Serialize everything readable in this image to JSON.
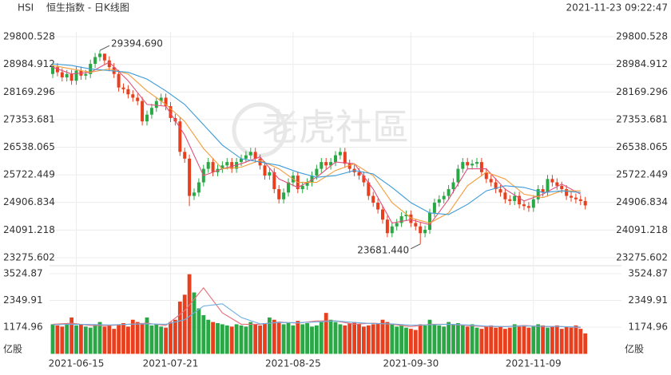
{
  "header": {
    "symbol": "HSI",
    "title": "恒生指数 - 日K线图",
    "timestamp": "2021-11-23 09:22:47"
  },
  "watermark": "老虎社區",
  "chart_data": {
    "type": "candlestick",
    "categories": [
      null,
      null,
      null,
      null,
      null,
      "2021-06-15",
      null,
      null,
      null,
      null,
      null,
      null,
      null,
      null,
      null,
      null,
      null,
      null,
      null,
      null,
      null,
      null,
      null,
      null,
      null,
      "2021-07-21",
      null,
      null,
      null,
      null,
      null,
      null,
      null,
      null,
      null,
      null,
      null,
      null,
      null,
      null,
      null,
      null,
      null,
      null,
      null,
      null,
      null,
      null,
      null,
      null,
      null,
      "2021-08-25",
      null,
      null,
      null,
      null,
      null,
      null,
      null,
      null,
      null,
      null,
      null,
      null,
      null,
      null,
      null,
      null,
      null,
      null,
      null,
      null,
      null,
      null,
      null,
      null,
      "2021-09-30",
      null,
      null,
      null,
      null,
      null,
      null,
      null,
      null,
      null,
      null,
      null,
      null,
      null,
      null,
      null,
      null,
      null,
      null,
      null,
      null,
      null,
      null,
      null,
      null,
      null,
      "2021-11-09",
      null,
      null,
      null,
      null,
      null,
      null,
      null,
      null,
      null,
      null,
      null
    ],
    "open": [
      28700,
      28900,
      28750,
      28600,
      28700,
      28500,
      28800,
      28650,
      28700,
      29000,
      29200,
      29300,
      29100,
      28900,
      28700,
      28300,
      28250,
      28100,
      28000,
      27900,
      27300,
      27500,
      27700,
      27900,
      28000,
      27750,
      27400,
      27300,
      26400,
      26200,
      25100,
      25200,
      25500,
      25900,
      26100,
      25800,
      25900,
      26000,
      26100,
      25900,
      26100,
      26200,
      26300,
      26400,
      26200,
      26000,
      25700,
      25800,
      25300,
      25000,
      25200,
      25500,
      25700,
      25300,
      25400,
      25500,
      25700,
      25900,
      26100,
      26000,
      26100,
      26300,
      26400,
      26050,
      25900,
      25800,
      25700,
      25500,
      25100,
      24900,
      24700,
      24400,
      24000,
      24200,
      24300,
      24500,
      24550,
      24300,
      24200,
      24000,
      24100,
      24600,
      24900,
      25000,
      25100,
      25300,
      25500,
      25900,
      26100,
      26000,
      26050,
      26100,
      25800,
      25600,
      25500,
      25300,
      25200,
      25000,
      24950,
      25100,
      24850,
      24800,
      24750,
      25000,
      25300,
      25200,
      25600,
      25500,
      25400,
      25300,
      25100,
      25050,
      25000,
      24950
    ],
    "high": [
      29020,
      29020,
      28870,
      28820,
      28820,
      28920,
      28920,
      28820,
      29120,
      29320,
      29394.69,
      29300,
      29220,
      29020,
      28820,
      28420,
      28370,
      28220,
      28120,
      28020,
      27620,
      27820,
      28020,
      28120,
      28120,
      27870,
      27520,
      27420,
      26520,
      26320,
      25320,
      25620,
      26020,
      26220,
      26220,
      26020,
      26120,
      26220,
      26220,
      26220,
      26320,
      26420,
      26520,
      26520,
      26320,
      26120,
      25920,
      25920,
      25420,
      25320,
      25620,
      25820,
      25820,
      25520,
      25620,
      25820,
      26020,
      26220,
      26220,
      26220,
      26420,
      26520,
      26520,
      26170,
      26020,
      25920,
      25820,
      25620,
      25220,
      25020,
      24820,
      24520,
      24320,
      24420,
      24620,
      24670,
      24670,
      24420,
      24320,
      24220,
      24720,
      25020,
      25120,
      25220,
      25420,
      25620,
      26020,
      26220,
      26220,
      26170,
      26220,
      26220,
      25920,
      25720,
      25620,
      25420,
      25320,
      25120,
      25220,
      25220,
      24970,
      24920,
      25120,
      25420,
      25420,
      25720,
      25720,
      25620,
      25520,
      25420,
      25220,
      25170,
      25120,
      25070
    ],
    "low": [
      28580,
      28630,
      28480,
      28480,
      28380,
      28380,
      28530,
      28530,
      28580,
      28880,
      29080,
      28980,
      28780,
      28580,
      28180,
      28130,
      27980,
      27880,
      27780,
      27180,
      27180,
      27380,
      27580,
      27780,
      27630,
      27280,
      27180,
      26280,
      26080,
      24800,
      24980,
      25080,
      25380,
      25780,
      25680,
      25680,
      25780,
      25880,
      25780,
      25780,
      25980,
      26080,
      26180,
      26080,
      25880,
      25580,
      25580,
      25180,
      24880,
      24880,
      25080,
      25380,
      25180,
      25180,
      25280,
      25380,
      25580,
      25780,
      25880,
      25880,
      25980,
      26180,
      25930,
      25780,
      25680,
      25580,
      25380,
      24980,
      24780,
      24580,
      24280,
      23880,
      23880,
      24080,
      24180,
      24380,
      24180,
      24080,
      23681.44,
      23880,
      23980,
      24480,
      24780,
      24880,
      24980,
      25180,
      25380,
      25780,
      25880,
      25880,
      25930,
      25680,
      25480,
      25380,
      25180,
      25080,
      24880,
      24830,
      24830,
      24730,
      24680,
      24630,
      24630,
      24880,
      25080,
      25080,
      25380,
      25280,
      25180,
      24980,
      24930,
      24880,
      24830,
      24700
    ],
    "close": [
      28900,
      28750,
      28600,
      28700,
      28500,
      28800,
      28650,
      28700,
      29000,
      29200,
      29300,
      29100,
      28900,
      28700,
      28300,
      28250,
      28100,
      28000,
      27900,
      27300,
      27500,
      27700,
      27900,
      28000,
      27750,
      27400,
      27300,
      26400,
      26200,
      25100,
      25200,
      25500,
      25900,
      26100,
      25800,
      25900,
      26000,
      26100,
      25900,
      26100,
      26200,
      26300,
      26400,
      26200,
      26000,
      25700,
      25800,
      25300,
      25000,
      25200,
      25500,
      25700,
      25300,
      25400,
      25500,
      25700,
      25900,
      26100,
      26000,
      26100,
      26300,
      26400,
      26050,
      25900,
      25800,
      25700,
      25500,
      25100,
      24900,
      24700,
      24400,
      24000,
      24200,
      24300,
      24500,
      24550,
      24300,
      24200,
      24000,
      24100,
      24600,
      24900,
      25000,
      25100,
      25300,
      25500,
      25900,
      26100,
      26000,
      26050,
      26100,
      25800,
      25600,
      25500,
      25300,
      25200,
      25000,
      24950,
      25100,
      24850,
      24800,
      24750,
      25000,
      25300,
      25200,
      25600,
      25500,
      25400,
      25300,
      25100,
      25050,
      25000,
      24950,
      24820
    ],
    "up_color": "#2aa845",
    "down_color": "#e8401f",
    "ylim": [
      23275.602,
      29800.528
    ],
    "yticks": [
      29800.528,
      28984.912,
      28169.296,
      27353.681,
      26538.065,
      25722.449,
      24906.834,
      24091.218,
      23275.602
    ],
    "grid": true,
    "moving_averages": [
      {
        "color": "#e0507a",
        "x": [
          0,
          4,
          8,
          12,
          16,
          20,
          24,
          28,
          32,
          36,
          40,
          44,
          48,
          52,
          56,
          60,
          64,
          68,
          72,
          76,
          80,
          84,
          88,
          92,
          96,
          100,
          104,
          108,
          112
        ],
        "values": [
          28900,
          28700,
          28750,
          29050,
          28500,
          27800,
          27750,
          26900,
          25700,
          25900,
          26050,
          26250,
          25600,
          25350,
          25650,
          26100,
          26050,
          25300,
          24300,
          24400,
          24250,
          25000,
          25900,
          25900,
          25300,
          24950,
          25150,
          25450,
          25150
        ]
      },
      {
        "color": "#f39c3c",
        "x": [
          0,
          4,
          8,
          12,
          16,
          20,
          24,
          28,
          32,
          36,
          40,
          44,
          48,
          52,
          56,
          60,
          64,
          68,
          72,
          76,
          80,
          84,
          88,
          92,
          96,
          100,
          104,
          108,
          112
        ],
        "values": [
          28950,
          28850,
          28750,
          28850,
          28700,
          28200,
          27800,
          27300,
          26500,
          25900,
          25950,
          26150,
          25900,
          25500,
          25500,
          25850,
          26050,
          25700,
          24900,
          24450,
          24300,
          24600,
          25400,
          25800,
          25600,
          25150,
          25050,
          25250,
          25250
        ]
      },
      {
        "color": "#3d9bd8",
        "x": [
          0,
          4,
          8,
          12,
          16,
          20,
          24,
          28,
          32,
          36,
          40,
          44,
          48,
          52,
          56,
          60,
          64,
          68,
          72,
          76,
          80,
          84,
          88,
          92,
          96,
          100,
          104,
          108,
          112
        ],
        "values": [
          29000,
          28950,
          28850,
          28800,
          28750,
          28550,
          28200,
          27800,
          27200,
          26600,
          26200,
          26100,
          26000,
          25800,
          25650,
          25700,
          25850,
          25750,
          25350,
          24900,
          24600,
          24550,
          24850,
          25250,
          25400,
          25350,
          25200,
          25250,
          25200
        ]
      }
    ],
    "annotations": [
      {
        "label": "29394.690",
        "value": 29394.69,
        "x": 10
      },
      {
        "label": "23681.440",
        "value": 23681.44,
        "x": 78
      }
    ],
    "volume": {
      "unit": "亿股",
      "values": [
        1300,
        1250,
        1200,
        1350,
        1600,
        1250,
        1300,
        1200,
        1150,
        1300,
        1400,
        1200,
        1250,
        1100,
        1300,
        1350,
        1200,
        1500,
        1400,
        1350,
        1600,
        1250,
        1300,
        1200,
        1150,
        1400,
        1500,
        2300,
        2600,
        3500,
        2700,
        2000,
        1700,
        1500,
        1400,
        1350,
        1300,
        1250,
        1200,
        1300,
        1250,
        1200,
        1400,
        1300,
        1250,
        1350,
        1600,
        1500,
        1400,
        1300,
        1350,
        1250,
        1450,
        1300,
        1350,
        1200,
        1250,
        1400,
        1800,
        1500,
        1400,
        1300,
        1250,
        1350,
        1400,
        1300,
        1200,
        1250,
        1300,
        1350,
        1500,
        1400,
        1300,
        1200,
        1250,
        1150,
        1100,
        1050,
        1300,
        1250,
        1500,
        1300,
        1250,
        1200,
        1400,
        1300,
        1350,
        1250,
        1200,
        1300,
        1150,
        1100,
        1200,
        1250,
        1150,
        1200,
        1100,
        1150,
        1300,
        1200,
        1250,
        1150,
        1200,
        1300,
        1250,
        1150,
        1200,
        1250,
        1100,
        1200,
        1150,
        1250,
        1100,
        900
      ],
      "ylim": [
        0,
        3524.87
      ],
      "yticks": [
        3524.87,
        2349.91,
        1174.96
      ],
      "moving_averages": [
        {
          "color": "#e8707a",
          "x": [
            0,
            4,
            8,
            12,
            16,
            20,
            24,
            28,
            32,
            36,
            40,
            44,
            48,
            52,
            56,
            60,
            64,
            68,
            72,
            76,
            80,
            84,
            88,
            92,
            96,
            100,
            104,
            108,
            112
          ],
          "values": [
            1300,
            1350,
            1250,
            1250,
            1300,
            1350,
            1250,
            1900,
            2900,
            1800,
            1300,
            1300,
            1400,
            1350,
            1450,
            1450,
            1300,
            1350,
            1300,
            1200,
            1300,
            1300,
            1250,
            1200,
            1200,
            1250,
            1200,
            1200,
            1150
          ]
        },
        {
          "color": "#6aaee0",
          "x": [
            0,
            4,
            8,
            12,
            16,
            20,
            24,
            28,
            32,
            36,
            40,
            44,
            48,
            52,
            56,
            60,
            64,
            68,
            72,
            76,
            80,
            84,
            88,
            92,
            96,
            100,
            104,
            108,
            112
          ],
          "values": [
            1280,
            1300,
            1290,
            1270,
            1300,
            1320,
            1300,
            1500,
            2100,
            2200,
            1600,
            1320,
            1380,
            1370,
            1400,
            1450,
            1380,
            1330,
            1320,
            1260,
            1280,
            1300,
            1270,
            1220,
            1200,
            1230,
            1210,
            1200,
            1180
          ]
        }
      ]
    }
  }
}
